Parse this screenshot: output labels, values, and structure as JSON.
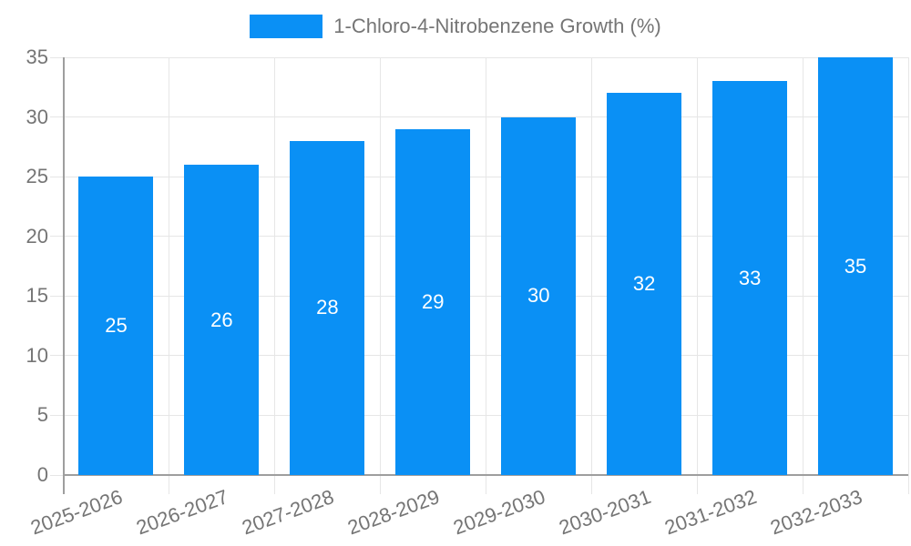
{
  "chart_data": {
    "type": "bar",
    "title": "",
    "xlabel": "",
    "ylabel": "",
    "categories": [
      "2025-2026",
      "2026-2027",
      "2027-2028",
      "2028-2029",
      "2029-2030",
      "2030-2031",
      "2031-2032",
      "2032-2033"
    ],
    "series": [
      {
        "name": "1-Chloro-4-Nitrobenzene Growth (%)",
        "values": [
          25,
          26,
          28,
          29,
          30,
          32,
          33,
          35
        ]
      }
    ],
    "show_value_labels": true,
    "ylim": [
      0,
      35
    ],
    "y_ticks": [
      0,
      5,
      10,
      15,
      20,
      25,
      30,
      35
    ],
    "grid": true,
    "legend_position": "top",
    "x_tick_rotation_deg": -20,
    "colors": {
      "bar": "#0a90f5",
      "grid": "#e6e6e6",
      "axis": "#9e9e9e",
      "tick_label": "#757575",
      "value_label": "#ffffff",
      "background": "#ffffff"
    }
  }
}
